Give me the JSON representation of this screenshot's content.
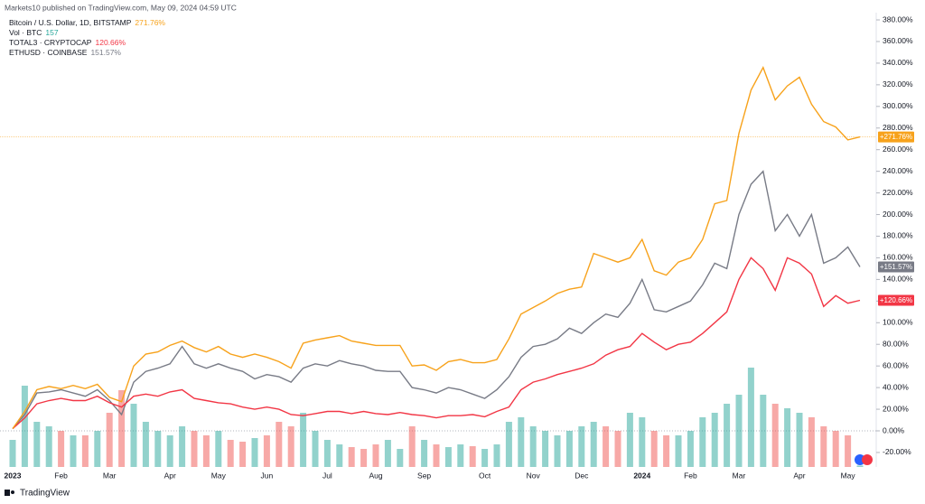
{
  "chart_data": {
    "type": "line",
    "subtitle": "Markets10 published on TradingView.com, May 09, 2024 04:59 UTC",
    "source": "TradingView",
    "categories": [
      "2023",
      null,
      null,
      null,
      "Feb",
      null,
      null,
      null,
      "Mar",
      null,
      null,
      null,
      null,
      "Apr",
      null,
      null,
      null,
      "May",
      null,
      null,
      null,
      "Jun",
      null,
      null,
      null,
      null,
      "Jul",
      null,
      null,
      null,
      "Aug",
      null,
      null,
      null,
      "Sep",
      null,
      null,
      null,
      null,
      "Oct",
      null,
      null,
      null,
      "Nov",
      null,
      null,
      null,
      "Dec",
      null,
      null,
      null,
      null,
      "2024",
      null,
      null,
      null,
      "Feb",
      null,
      null,
      null,
      "Mar",
      null,
      null,
      null,
      null,
      "Apr",
      null,
      null,
      null,
      "May",
      null
    ],
    "series": [
      {
        "name": "Bitcoin / U.S. Dollar, 1D, BITSTAMP",
        "color": "#f7a21b",
        "last_label": "271.76%",
        "tag_label": "+271.76%",
        "values": [
          2,
          18,
          38,
          41,
          39,
          42,
          39,
          43,
          31,
          27,
          60,
          71,
          73,
          79,
          83,
          77,
          73,
          78,
          71,
          68,
          71,
          68,
          64,
          58,
          81,
          84,
          86,
          88,
          83,
          81,
          79,
          79,
          79,
          60,
          61,
          56,
          64,
          66,
          63,
          63,
          66,
          85,
          108,
          114,
          120,
          127,
          131,
          133,
          164,
          160,
          156,
          160,
          177,
          148,
          144,
          156,
          160,
          177,
          210,
          213,
          275,
          315,
          336,
          306,
          319,
          327,
          302,
          286,
          281,
          269,
          271.76
        ]
      },
      {
        "name": "TOTAL3 · CRYPTOCAP",
        "color": "#f23645",
        "last_label": "120.66%",
        "tag_label": "+120.66%",
        "values": [
          2,
          12,
          25,
          28,
          30,
          28,
          28,
          32,
          26,
          22,
          32,
          34,
          32,
          36,
          38,
          30,
          28,
          26,
          25,
          22,
          20,
          22,
          20,
          15,
          14,
          16,
          18,
          18,
          16,
          18,
          16,
          15,
          17,
          15,
          14,
          12,
          14,
          14,
          15,
          13,
          18,
          22,
          38,
          45,
          48,
          52,
          55,
          58,
          62,
          70,
          75,
          78,
          90,
          82,
          75,
          80,
          82,
          90,
          100,
          110,
          140,
          160,
          150,
          130,
          160,
          155,
          145,
          115,
          125,
          118,
          120.66
        ]
      },
      {
        "name": "ETHUSD · COINBASE",
        "color": "#787b86",
        "last_label": "151.57%",
        "tag_label": "+151.57%",
        "values": [
          2,
          15,
          35,
          36,
          38,
          35,
          32,
          38,
          28,
          15,
          45,
          55,
          58,
          62,
          78,
          62,
          58,
          62,
          58,
          55,
          48,
          52,
          50,
          45,
          58,
          62,
          60,
          65,
          62,
          60,
          56,
          55,
          55,
          40,
          38,
          35,
          40,
          38,
          34,
          30,
          38,
          50,
          68,
          78,
          80,
          85,
          95,
          90,
          100,
          108,
          105,
          118,
          140,
          112,
          110,
          115,
          120,
          135,
          155,
          150,
          200,
          228,
          240,
          185,
          200,
          180,
          200,
          155,
          160,
          170,
          151.57
        ]
      }
    ],
    "volume": {
      "name": "Vol · BTC",
      "last": 157,
      "color_up": "rgba(38,166,154,0.5)",
      "color_down": "rgba(239,83,80,0.5)",
      "ylim": [
        0,
        12000
      ],
      "values": [
        3000,
        9000,
        5000,
        4500,
        4000,
        3500,
        3500,
        4000,
        6000,
        8500,
        7000,
        5000,
        4000,
        3500,
        4500,
        4000,
        3500,
        4000,
        3000,
        2800,
        3200,
        3500,
        5000,
        4500,
        6000,
        4000,
        3000,
        2500,
        2200,
        2000,
        2500,
        3000,
        2000,
        4500,
        3000,
        2500,
        2200,
        2500,
        2300,
        2000,
        2500,
        5000,
        5500,
        4500,
        4000,
        3500,
        4000,
        4500,
        5000,
        4500,
        4000,
        6000,
        5500,
        4000,
        3500,
        3500,
        4000,
        5500,
        6000,
        7000,
        8000,
        11000,
        8000,
        7000,
        6500,
        6000,
        5500,
        4500,
        4000,
        3500,
        157
      ]
    },
    "ylim": [
      -33.4,
      386.7
    ],
    "yticks": [
      {
        "value": -20,
        "label": "-20.00%"
      },
      {
        "value": 0,
        "label": "0.00%"
      },
      {
        "value": 20,
        "label": "20.00%"
      },
      {
        "value": 40,
        "label": "40.00%"
      },
      {
        "value": 60,
        "label": "60.00%"
      },
      {
        "value": 80,
        "label": "80.00%"
      },
      {
        "value": 100,
        "label": "100.00%"
      },
      {
        "value": 120,
        "label": "120.00%"
      },
      {
        "value": 140,
        "label": "140.00%"
      },
      {
        "value": 160,
        "label": "160.00%"
      },
      {
        "value": 180,
        "label": "180.00%"
      },
      {
        "value": 200,
        "label": "200.00%"
      },
      {
        "value": 220,
        "label": "220.00%"
      },
      {
        "value": 240,
        "label": "240.00%"
      },
      {
        "value": 260,
        "label": "260.00%"
      },
      {
        "value": 280,
        "label": "280.00%"
      },
      {
        "value": 300,
        "label": "300.00%"
      },
      {
        "value": 320,
        "label": "320.00%"
      },
      {
        "value": 340,
        "label": "340.00%"
      },
      {
        "value": 360,
        "label": "360.00%"
      },
      {
        "value": 380,
        "label": "380.00%"
      }
    ],
    "grid": false
  }
}
